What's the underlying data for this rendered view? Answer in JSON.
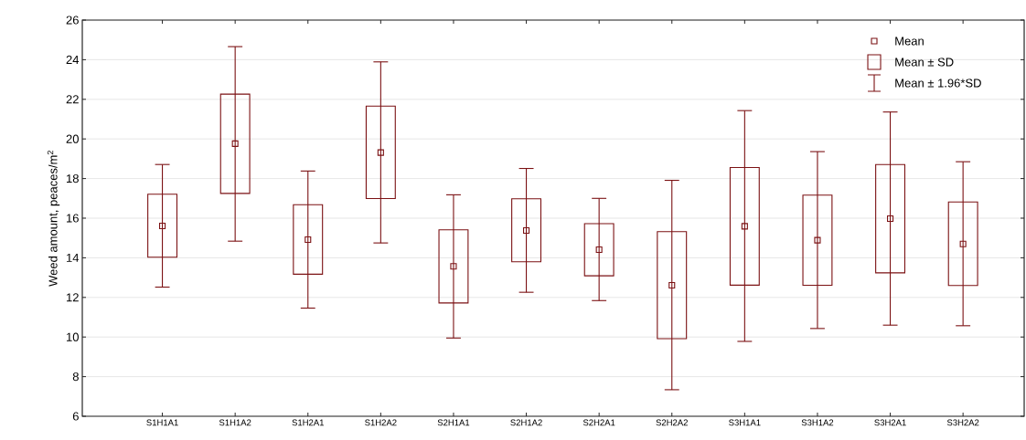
{
  "chart_data": {
    "type": "box",
    "ylabel": "Weed amount, peaces/m$^{2}$",
    "color": "#7b1113",
    "categories": [
      "S1H1A1",
      "S1H1A2",
      "S1H2A1",
      "S1H2A2",
      "S2H1A1",
      "S2H1A2",
      "S2H2A1",
      "S2H2A2",
      "S3H1A1",
      "S3H1A2",
      "S3H2A1",
      "S3H2A2"
    ],
    "boxes": [
      {
        "low": 12.52,
        "q1": 14.03,
        "mean": 15.61,
        "q3": 17.21,
        "high": 18.71
      },
      {
        "low": 14.84,
        "q1": 17.25,
        "mean": 19.76,
        "q3": 22.26,
        "high": 24.66
      },
      {
        "low": 11.46,
        "q1": 13.17,
        "mean": 14.92,
        "q3": 16.68,
        "high": 18.38
      },
      {
        "low": 14.75,
        "q1": 16.99,
        "mean": 19.31,
        "q3": 21.66,
        "high": 23.89
      },
      {
        "low": 9.95,
        "q1": 11.72,
        "mean": 13.57,
        "q3": 15.41,
        "high": 17.18
      },
      {
        "low": 12.26,
        "q1": 13.8,
        "mean": 15.38,
        "q3": 16.98,
        "high": 18.51
      },
      {
        "low": 11.84,
        "q1": 13.09,
        "mean": 14.41,
        "q3": 15.72,
        "high": 17.0
      },
      {
        "low": 7.34,
        "q1": 9.92,
        "mean": 12.61,
        "q3": 15.32,
        "high": 17.91
      },
      {
        "low": 9.78,
        "q1": 12.62,
        "mean": 15.59,
        "q3": 18.56,
        "high": 21.43
      },
      {
        "low": 10.43,
        "q1": 12.61,
        "mean": 14.89,
        "q3": 17.16,
        "high": 19.36
      },
      {
        "low": 10.6,
        "q1": 13.24,
        "mean": 15.98,
        "q3": 18.71,
        "high": 21.36
      },
      {
        "low": 10.57,
        "q1": 12.6,
        "mean": 14.7,
        "q3": 16.82,
        "high": 18.85
      }
    ],
    "ylim": [
      6,
      26
    ],
    "yticks": [
      6,
      8,
      10,
      12,
      14,
      16,
      18,
      20,
      22,
      24,
      26
    ],
    "grid": "y",
    "annotations": [
      "Mean",
      "Mean ± SD",
      "Mean ± 1.96*SD"
    ]
  }
}
